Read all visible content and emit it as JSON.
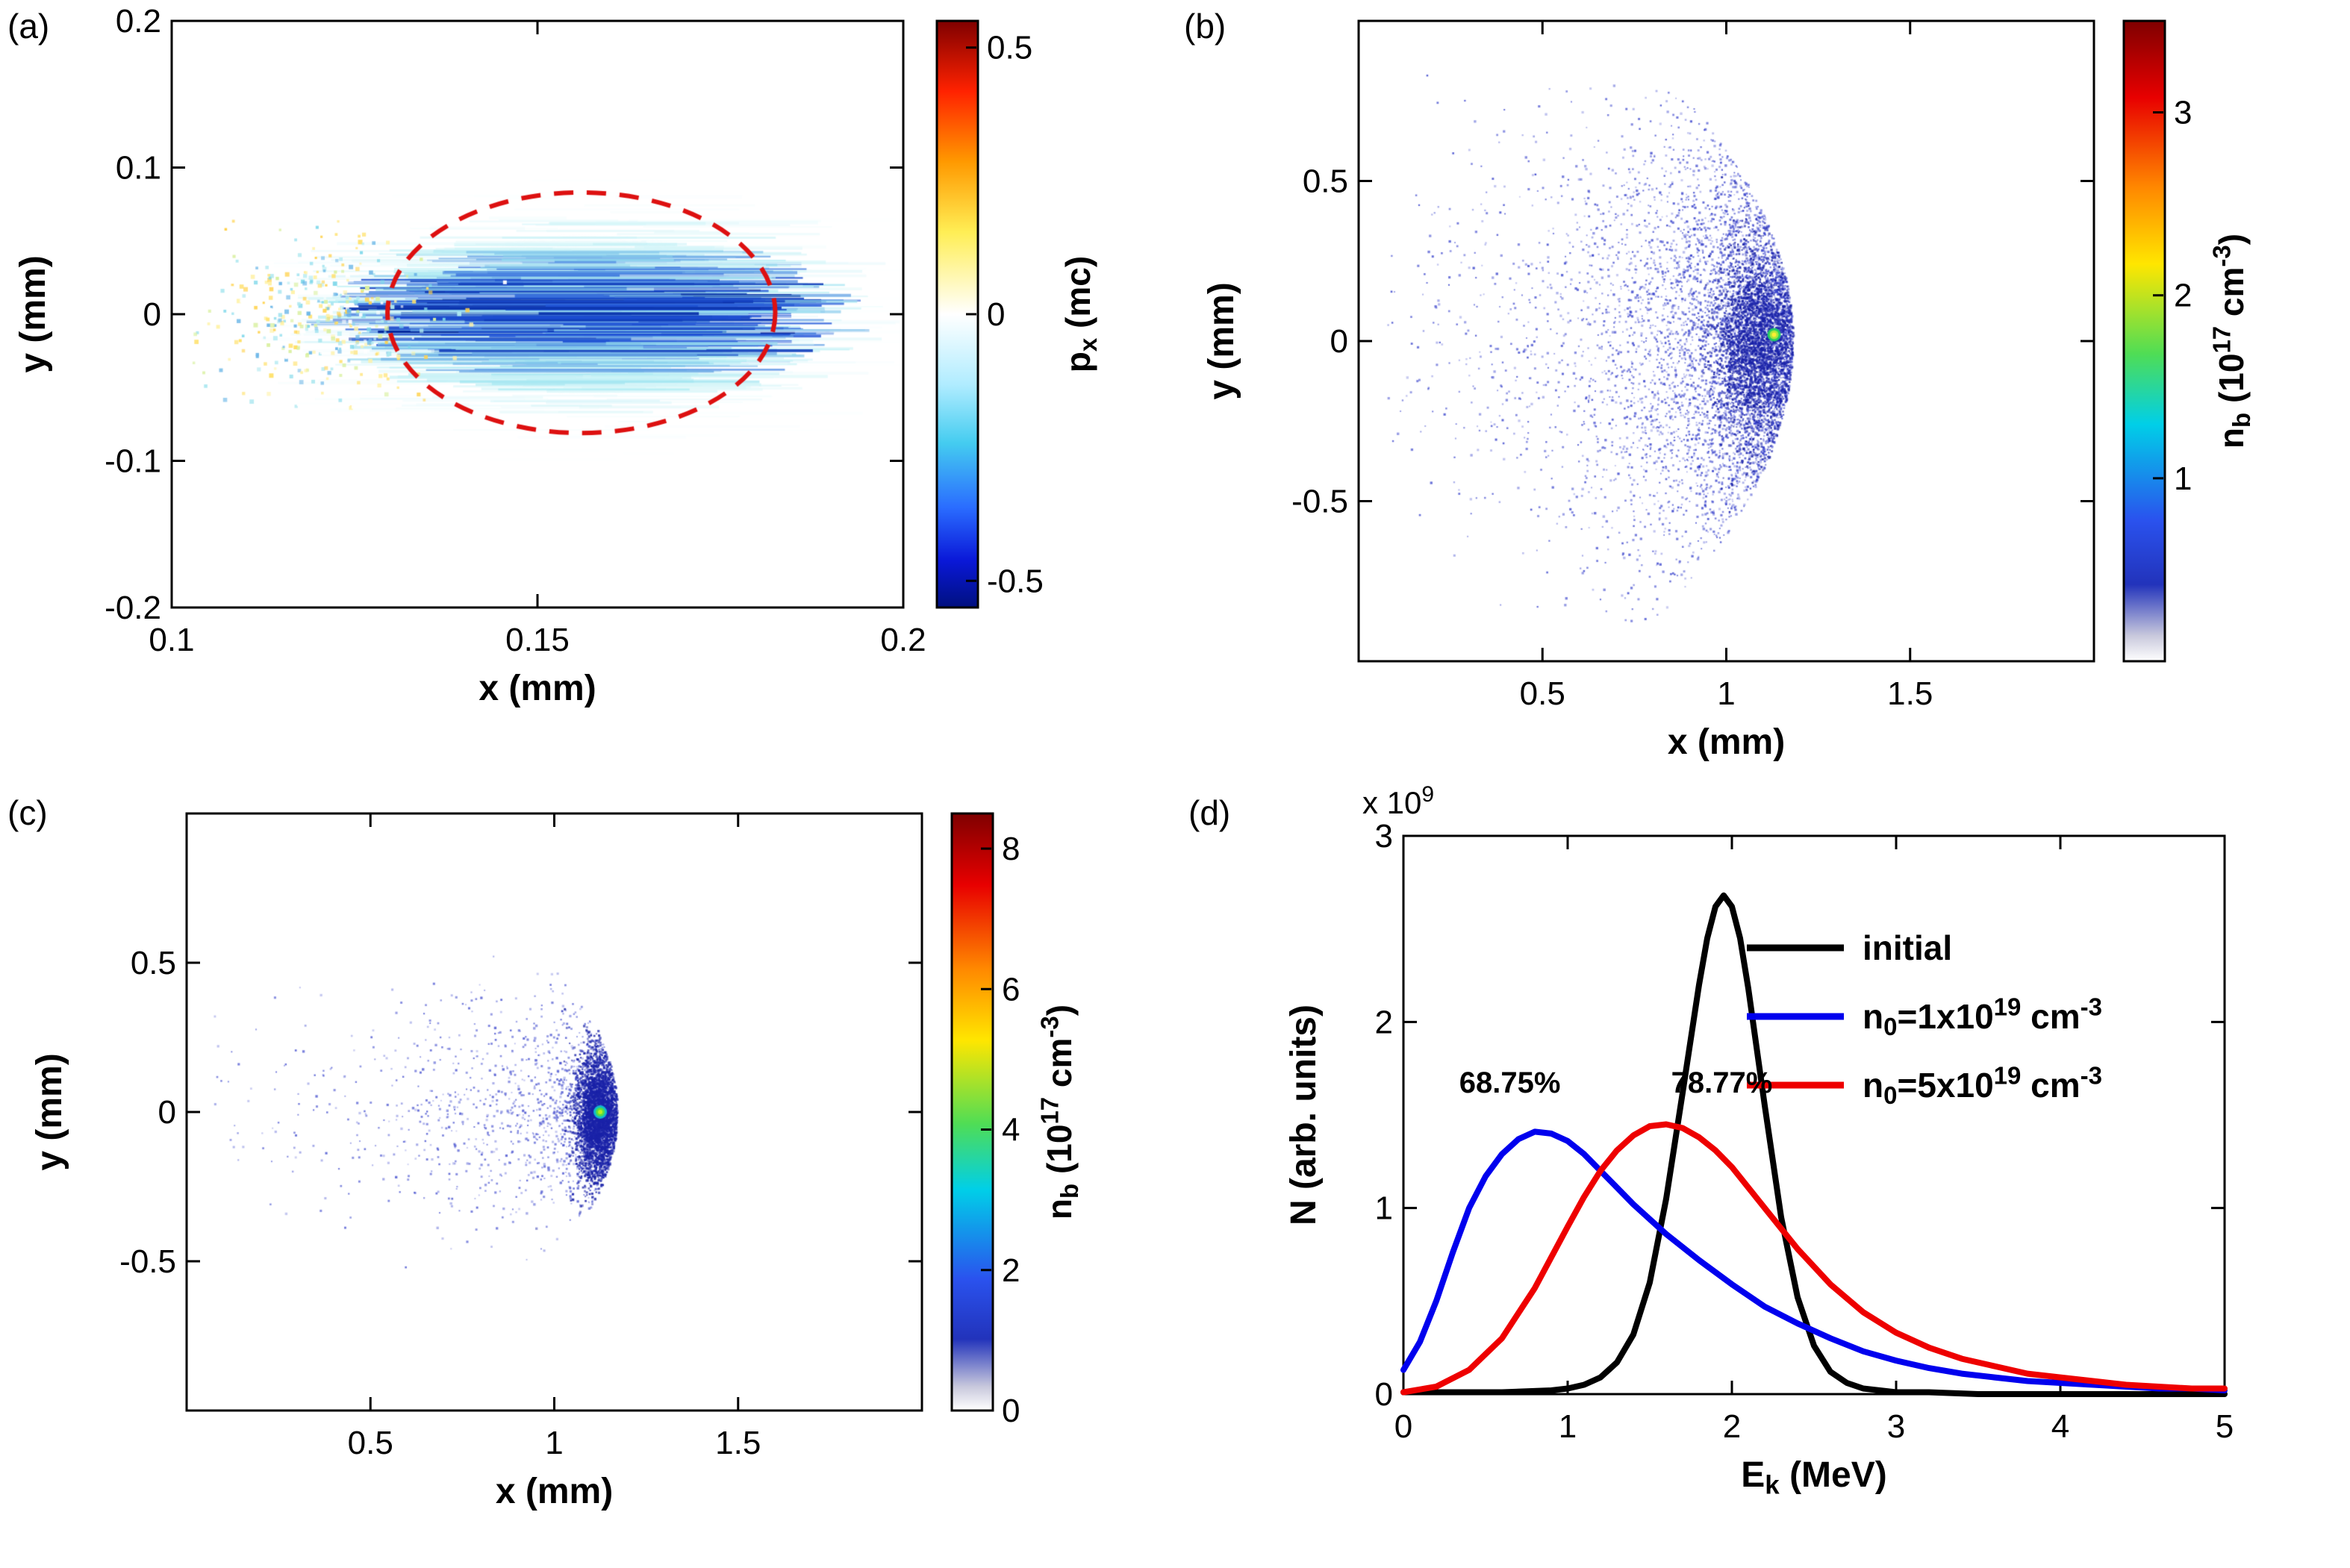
{
  "figure": {
    "background": "#ffffff"
  },
  "chart_data": [
    {
      "id": "a",
      "panel_label": "(a)",
      "type": "heatmap",
      "xlabel": "x (mm)",
      "ylabel": "y (mm)",
      "xlim": [
        0.1,
        0.2
      ],
      "ylim": [
        -0.2,
        0.2
      ],
      "xticks": [
        0.1,
        0.15,
        0.2
      ],
      "xtick_labels": [
        "0.1",
        "0.15",
        "0.2"
      ],
      "yticks": [
        -0.2,
        -0.1,
        0,
        0.1,
        0.2
      ],
      "ytick_labels": [
        "-0.2",
        "-0.1",
        "0",
        "0.1",
        "0.2"
      ],
      "colorbar": {
        "label": "p_x (mc)",
        "label_segments": [
          {
            "t": "p"
          },
          {
            "t": "x",
            "s": "sub"
          },
          {
            "t": " (mc)"
          }
        ],
        "ticks": [
          0.5,
          0,
          -0.5
        ],
        "tick_labels": [
          "0.5",
          "0",
          "-0.5"
        ],
        "lim": [
          -0.55,
          0.55
        ],
        "gradient": [
          {
            "c": "#7f0000",
            "p": 0
          },
          {
            "c": "#ff2200",
            "p": 12
          },
          {
            "c": "#ff9900",
            "p": 24
          },
          {
            "c": "#ffee55",
            "p": 36
          },
          {
            "c": "#ffffff",
            "p": 50
          },
          {
            "c": "#b0ecff",
            "p": 62
          },
          {
            "c": "#44ccf0",
            "p": 72
          },
          {
            "c": "#2a6cff",
            "p": 83
          },
          {
            "c": "#0a18d8",
            "p": 92
          },
          {
            "c": "#00107f",
            "p": 100
          }
        ]
      },
      "features": {
        "momentum_blob": {
          "cx": 0.157,
          "cy": 0.0,
          "sx": 0.013,
          "sy": 0.032,
          "sign": "negative",
          "palette": [
            "#ffffff",
            "#9fe8f0",
            "#1f52d8",
            "#062a9e"
          ],
          "n_streaks": 540
        },
        "speckle_patch": {
          "cx": 0.1205,
          "cy": -0.002,
          "sx": 0.0075,
          "sy": 0.028,
          "n_dots": 380,
          "palette": [
            "#fff2a8",
            "#ffe066",
            "#d9f0a0",
            "#aee8f0",
            "#7fd8ea",
            "#ffd24d",
            "#ffffff",
            "#6fb8e8"
          ]
        },
        "dashed_ellipse": {
          "cx": 0.156,
          "cy": 0.001,
          "rx": 0.0265,
          "ry": 0.082,
          "color": "#dd1010",
          "style": "dashed"
        }
      }
    },
    {
      "id": "b",
      "panel_label": "(b)",
      "type": "scatter-density",
      "xlabel": "x (mm)",
      "ylabel": "y (mm)",
      "xlim": [
        0,
        2
      ],
      "ylim": [
        -1,
        1
      ],
      "xticks": [
        0.5,
        1,
        1.5
      ],
      "xtick_labels": [
        "0.5",
        "1",
        "1.5"
      ],
      "yticks": [
        -0.5,
        0,
        0.5
      ],
      "ytick_labels": [
        "-0.5",
        "0",
        "0.5"
      ],
      "colorbar": {
        "label": "n_b (10^17 cm^-3)",
        "label_segments": [
          {
            "t": "n"
          },
          {
            "t": "b",
            "s": "sub"
          },
          {
            "t": " (10"
          },
          {
            "t": "17",
            "s": "sup"
          },
          {
            "t": " cm"
          },
          {
            "t": "-3",
            "s": "sup"
          },
          {
            "t": ")"
          }
        ],
        "ticks": [
          3,
          2,
          1
        ],
        "tick_labels": [
          "3",
          "2",
          "1"
        ],
        "lim": [
          0,
          3.5
        ],
        "gradient": [
          {
            "c": "#7f0000",
            "p": 0
          },
          {
            "c": "#e80000",
            "p": 12
          },
          {
            "c": "#ff8800",
            "p": 26
          },
          {
            "c": "#ffe600",
            "p": 38
          },
          {
            "c": "#4fdd55",
            "p": 52
          },
          {
            "c": "#00cfe8",
            "p": 63
          },
          {
            "c": "#2a52ee",
            "p": 78
          },
          {
            "c": "#2233bb",
            "p": 88
          },
          {
            "c": "#c8c8dc",
            "p": 96
          },
          {
            "c": "#ffffff",
            "p": 100
          }
        ]
      },
      "features": {
        "cloud": {
          "apex_x": 1.18,
          "curvature": 0.5,
          "y_sigma": 0.3,
          "depth_scale": 0.22,
          "n_points": 5200,
          "color": "#2a35c8"
        },
        "core": {
          "cx": 1.08,
          "cy": 0.0,
          "sx": 0.055,
          "sy": 0.14,
          "n_points": 2600,
          "color": "#1a22a8"
        },
        "hot_spot": {
          "cx": 1.13,
          "cy": 0.02,
          "rings": [
            "#22cc66",
            "#a8e83a",
            "#ffee33"
          ]
        }
      }
    },
    {
      "id": "c",
      "panel_label": "(c)",
      "type": "scatter-density",
      "xlabel": "x (mm)",
      "ylabel": "y (mm)",
      "xlim": [
        0,
        2
      ],
      "ylim": [
        -1,
        1
      ],
      "xticks": [
        0.5,
        1,
        1.5
      ],
      "xtick_labels": [
        "0.5",
        "1",
        "1.5"
      ],
      "yticks": [
        -0.5,
        0,
        0.5
      ],
      "ytick_labels": [
        "-0.5",
        "0",
        "0.5"
      ],
      "colorbar": {
        "label": "n_b (10^17 cm^-3)",
        "label_segments": [
          {
            "t": "n"
          },
          {
            "t": "b",
            "s": "sub"
          },
          {
            "t": " (10"
          },
          {
            "t": "17",
            "s": "sup"
          },
          {
            "t": " cm"
          },
          {
            "t": "-3",
            "s": "sup"
          },
          {
            "t": ")"
          }
        ],
        "ticks": [
          8,
          6,
          4,
          2,
          0
        ],
        "tick_labels": [
          "8",
          "6",
          "4",
          "2",
          "0"
        ],
        "lim": [
          0,
          8.5
        ],
        "gradient": [
          {
            "c": "#7f0000",
            "p": 0
          },
          {
            "c": "#e80000",
            "p": 12
          },
          {
            "c": "#ff8800",
            "p": 26
          },
          {
            "c": "#ffe600",
            "p": 38
          },
          {
            "c": "#4fdd55",
            "p": 52
          },
          {
            "c": "#00cfe8",
            "p": 63
          },
          {
            "c": "#2a52ee",
            "p": 78
          },
          {
            "c": "#2233bb",
            "p": 88
          },
          {
            "c": "#c8c8dc",
            "p": 96
          },
          {
            "c": "#ffffff",
            "p": 100
          }
        ]
      },
      "features": {
        "cloud": {
          "apex_x": 1.17,
          "curvature": 0.7,
          "y_sigma": 0.17,
          "depth_scale": 0.25,
          "n_points": 1400,
          "color": "#3a45cc"
        },
        "core": {
          "cx": 1.115,
          "cy": -0.01,
          "sx": 0.03,
          "sy": 0.1,
          "n_points": 3200,
          "color": "#1a22a8"
        },
        "hot_spot": {
          "cx": 1.125,
          "cy": 0.0,
          "rings": [
            "#11bbcc",
            "#55dd44",
            "#bbee22"
          ]
        }
      }
    },
    {
      "id": "d",
      "panel_label": "(d)",
      "type": "line",
      "xlabel": "E_k (MeV)",
      "xlabel_segments": [
        {
          "t": "E"
        },
        {
          "t": "k",
          "s": "sub"
        },
        {
          "t": " (MeV)"
        }
      ],
      "ylabel": "N (arb. units)",
      "y_multiplier": "x 10^9",
      "y_multiplier_segments": [
        {
          "t": "x 10"
        },
        {
          "t": "9",
          "s": "sup"
        }
      ],
      "xlim": [
        0,
        5
      ],
      "ylim": [
        0,
        3
      ],
      "xticks": [
        0,
        1,
        2,
        3,
        4,
        5
      ],
      "xtick_labels": [
        "0",
        "1",
        "2",
        "3",
        "4",
        "5"
      ],
      "yticks": [
        0,
        1,
        2,
        3
      ],
      "ytick_labels": [
        "0",
        "1",
        "2",
        "3"
      ],
      "legend_position": "upper-right",
      "series": [
        {
          "name": "initial",
          "name_segments": [
            {
              "t": "initial"
            }
          ],
          "color": "#000000",
          "x": [
            0,
            0.6,
            0.9,
            1.0,
            1.1,
            1.2,
            1.3,
            1.4,
            1.5,
            1.6,
            1.7,
            1.8,
            1.85,
            1.9,
            1.95,
            2.0,
            2.05,
            2.1,
            2.2,
            2.3,
            2.4,
            2.5,
            2.6,
            2.7,
            2.8,
            3.0,
            3.2,
            3.5,
            4.0,
            4.5,
            5.0
          ],
          "y": [
            0.01,
            0.01,
            0.02,
            0.03,
            0.05,
            0.09,
            0.17,
            0.32,
            0.6,
            1.05,
            1.62,
            2.2,
            2.45,
            2.62,
            2.68,
            2.62,
            2.45,
            2.18,
            1.55,
            0.95,
            0.52,
            0.26,
            0.12,
            0.06,
            0.03,
            0.01,
            0.01,
            0.0,
            0.0,
            0.0,
            0.0
          ]
        },
        {
          "name": "n0=1x10^19 cm^-3",
          "name_segments": [
            {
              "t": "n"
            },
            {
              "t": "0",
              "s": "sub"
            },
            {
              "t": "=1x10"
            },
            {
              "t": "19",
              "s": "sup"
            },
            {
              "t": " cm"
            },
            {
              "t": "-3",
              "s": "sup"
            }
          ],
          "color": "#0000ee",
          "x": [
            0,
            0.1,
            0.2,
            0.3,
            0.4,
            0.5,
            0.6,
            0.7,
            0.8,
            0.9,
            1.0,
            1.1,
            1.2,
            1.3,
            1.4,
            1.6,
            1.8,
            2.0,
            2.2,
            2.4,
            2.6,
            2.8,
            3.0,
            3.2,
            3.4,
            3.6,
            3.8,
            4.0,
            4.2,
            4.4,
            4.6,
            4.8,
            5.0
          ],
          "y": [
            0.13,
            0.28,
            0.5,
            0.76,
            1.0,
            1.17,
            1.29,
            1.37,
            1.41,
            1.4,
            1.36,
            1.29,
            1.2,
            1.11,
            1.02,
            0.86,
            0.72,
            0.59,
            0.47,
            0.38,
            0.3,
            0.23,
            0.18,
            0.14,
            0.11,
            0.09,
            0.07,
            0.06,
            0.05,
            0.04,
            0.03,
            0.03,
            0.02
          ]
        },
        {
          "name": "n0=5x10^19 cm^-3",
          "name_segments": [
            {
              "t": "n"
            },
            {
              "t": "0",
              "s": "sub"
            },
            {
              "t": "=5x10"
            },
            {
              "t": "19",
              "s": "sup"
            },
            {
              "t": " cm"
            },
            {
              "t": "-3",
              "s": "sup"
            }
          ],
          "color": "#ee0000",
          "x": [
            0,
            0.2,
            0.4,
            0.6,
            0.8,
            1.0,
            1.1,
            1.2,
            1.3,
            1.4,
            1.5,
            1.6,
            1.7,
            1.8,
            1.9,
            2.0,
            2.2,
            2.4,
            2.6,
            2.8,
            3.0,
            3.2,
            3.4,
            3.6,
            3.8,
            4.0,
            4.4,
            4.8,
            5.0
          ],
          "y": [
            0.01,
            0.04,
            0.13,
            0.3,
            0.57,
            0.9,
            1.06,
            1.2,
            1.31,
            1.39,
            1.44,
            1.45,
            1.43,
            1.38,
            1.31,
            1.22,
            1.0,
            0.78,
            0.59,
            0.44,
            0.33,
            0.25,
            0.19,
            0.15,
            0.11,
            0.09,
            0.05,
            0.03,
            0.03
          ]
        }
      ],
      "annotations": [
        {
          "text": "68.75%",
          "color": "#0000ee",
          "x": 0.34,
          "y": 1.62
        },
        {
          "text": "78.77%",
          "color": "#ee0000",
          "x": 1.63,
          "y": 1.62
        }
      ]
    }
  ]
}
